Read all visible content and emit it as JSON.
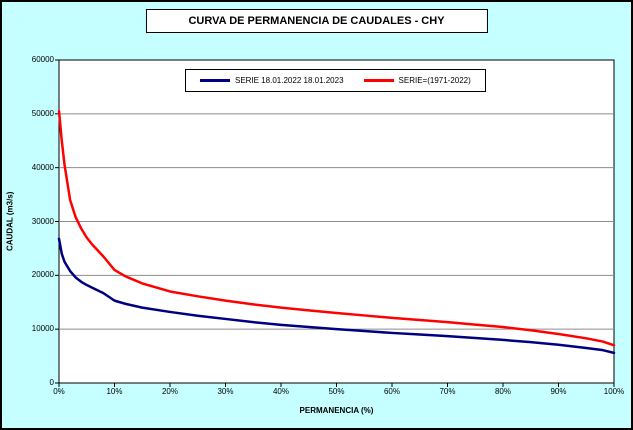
{
  "colors": {
    "background": "#C6FFFF",
    "plot_background": "#FFFFFF",
    "grid": "#8C8C8C",
    "axis": "#000000"
  },
  "chart_data": {
    "type": "line",
    "title": "CURVA DE PERMANENCIA DE CAUDALES - CHY",
    "xlabel": "PERMANENCIA (%)",
    "ylabel": "CAUDAL (m3/s)",
    "xlim": [
      0,
      100
    ],
    "ylim": [
      0,
      60000
    ],
    "x_ticks": [
      "0%",
      "10%",
      "20%",
      "30%",
      "40%",
      "50%",
      "60%",
      "70%",
      "80%",
      "90%",
      "100%"
    ],
    "y_ticks": [
      0,
      10000,
      20000,
      30000,
      40000,
      50000,
      60000
    ],
    "grid": "horizontal",
    "legend_position": "top-center",
    "series": [
      {
        "name": "SERIE 18.01.2022 18.01.2023",
        "color": "#000080",
        "x": [
          0,
          0.5,
          1,
          2,
          3,
          4,
          5,
          6,
          8,
          10,
          12,
          15,
          20,
          25,
          30,
          35,
          40,
          45,
          50,
          55,
          60,
          65,
          70,
          75,
          80,
          85,
          90,
          95,
          98,
          100
        ],
        "values": [
          26800,
          24000,
          22500,
          20800,
          19600,
          18800,
          18200,
          17700,
          16700,
          15300,
          14700,
          14000,
          13200,
          12500,
          11900,
          11300,
          10800,
          10400,
          10000,
          9650,
          9300,
          9000,
          8700,
          8350,
          8000,
          7600,
          7100,
          6500,
          6100,
          5600
        ]
      },
      {
        "name": "SERIE=(1971-2022)",
        "color": "#FF0000",
        "x": [
          0,
          0.5,
          1,
          2,
          3,
          4,
          5,
          6,
          8,
          10,
          12,
          15,
          20,
          25,
          30,
          35,
          40,
          45,
          50,
          55,
          60,
          65,
          70,
          75,
          80,
          85,
          90,
          95,
          98,
          100
        ],
        "values": [
          50500,
          45000,
          40500,
          34000,
          30800,
          28700,
          27000,
          25700,
          23500,
          21000,
          19800,
          18500,
          17000,
          16100,
          15300,
          14600,
          14000,
          13500,
          13000,
          12550,
          12100,
          11700,
          11300,
          10850,
          10400,
          9800,
          9100,
          8300,
          7700,
          7000
        ]
      }
    ]
  }
}
